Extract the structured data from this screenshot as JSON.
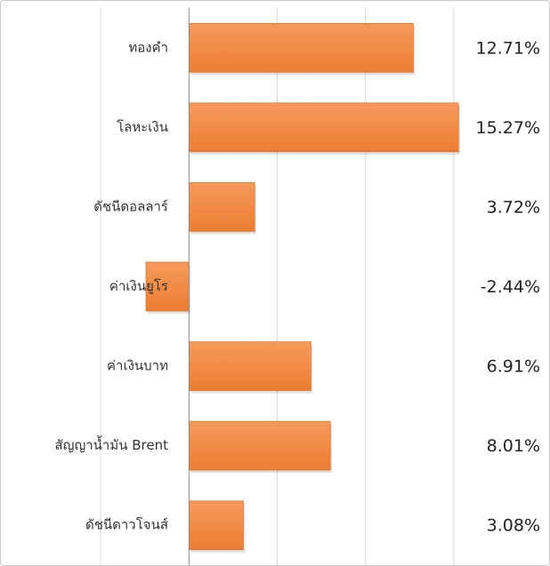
{
  "chart_data": {
    "type": "bar",
    "orientation": "horizontal",
    "title": "",
    "xlabel": "",
    "ylabel": "",
    "categories": [
      "ทองคำ",
      "โลหะเงิน",
      "ดัชนีดอลลาร์",
      "ค่าเงินยูโร",
      "ค่าเงินบาท",
      "สัญญาน้ำมัน Brent",
      "ดัชนีดาวโจนส์"
    ],
    "values": [
      12.71,
      15.27,
      3.72,
      -2.44,
      6.91,
      8.01,
      3.08
    ],
    "value_labels": [
      "12.71%",
      "15.27%",
      "3.72%",
      "-2.44%",
      "6.91%",
      "8.01%",
      "3.08%"
    ],
    "xlim": [
      -10,
      20
    ],
    "grid": "vertical",
    "bar_color": "#ED7D31",
    "bar_gradient_light": "#F59A5C"
  }
}
